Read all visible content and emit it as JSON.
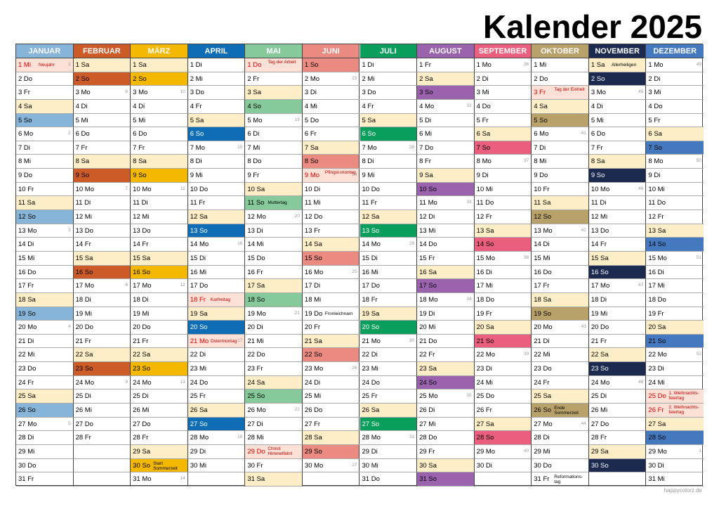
{
  "title": "Kalender 2025",
  "credit": "happycolorz.de",
  "months": [
    {
      "name": "JANUAR",
      "color": "#86b5d9",
      "days": [
        {
          "d": "1 Mi",
          "hol": "Neujahr",
          "wk": "1"
        },
        {
          "d": "2 Do"
        },
        {
          "d": "3 Fr"
        },
        {
          "d": "4 Sa"
        },
        {
          "d": "5 So"
        },
        {
          "d": "6 Mo",
          "wk": "2"
        },
        {
          "d": "7 Di"
        },
        {
          "d": "8 Mi"
        },
        {
          "d": "9 Do"
        },
        {
          "d": "10 Fr"
        },
        {
          "d": "11 Sa"
        },
        {
          "d": "12 So"
        },
        {
          "d": "13 Mo",
          "wk": "3"
        },
        {
          "d": "14 Di"
        },
        {
          "d": "15 Mi"
        },
        {
          "d": "16 Do"
        },
        {
          "d": "17 Fr"
        },
        {
          "d": "18 Sa"
        },
        {
          "d": "19 So"
        },
        {
          "d": "20 Mo",
          "wk": "4"
        },
        {
          "d": "21 Di"
        },
        {
          "d": "22 Mi"
        },
        {
          "d": "23 Do"
        },
        {
          "d": "24 Fr"
        },
        {
          "d": "25 Sa"
        },
        {
          "d": "26 So"
        },
        {
          "d": "27 Mo",
          "wk": "5"
        },
        {
          "d": "28 Di"
        },
        {
          "d": "29 Mi"
        },
        {
          "d": "30 Do"
        },
        {
          "d": "31 Fr"
        }
      ]
    },
    {
      "name": "FEBRUAR",
      "color": "#cc5b28",
      "days": [
        {
          "d": "1 Sa"
        },
        {
          "d": "2 So"
        },
        {
          "d": "3 Mo",
          "wk": "6"
        },
        {
          "d": "4 Di"
        },
        {
          "d": "5 Mi"
        },
        {
          "d": "6 Do"
        },
        {
          "d": "7 Fr"
        },
        {
          "d": "8 Sa"
        },
        {
          "d": "9 So"
        },
        {
          "d": "10 Mo",
          "wk": "7"
        },
        {
          "d": "11 Di"
        },
        {
          "d": "12 Mi"
        },
        {
          "d": "13 Do"
        },
        {
          "d": "14 Fr"
        },
        {
          "d": "15 Sa"
        },
        {
          "d": "16 So"
        },
        {
          "d": "17 Mo",
          "wk": "8"
        },
        {
          "d": "18 Di"
        },
        {
          "d": "19 Mi"
        },
        {
          "d": "20 Do"
        },
        {
          "d": "21 Fr"
        },
        {
          "d": "22 Sa"
        },
        {
          "d": "23 So"
        },
        {
          "d": "24 Mo",
          "wk": "9"
        },
        {
          "d": "25 Di"
        },
        {
          "d": "26 Mi"
        },
        {
          "d": "27 Do"
        },
        {
          "d": "28 Fr"
        }
      ]
    },
    {
      "name": "MÄRZ",
      "color": "#f5b800",
      "days": [
        {
          "d": "1 Sa"
        },
        {
          "d": "2 So"
        },
        {
          "d": "3 Mo",
          "wk": "10"
        },
        {
          "d": "4 Di"
        },
        {
          "d": "5 Mi"
        },
        {
          "d": "6 Do"
        },
        {
          "d": "7 Fr"
        },
        {
          "d": "8 Sa"
        },
        {
          "d": "9 So"
        },
        {
          "d": "10 Mo",
          "wk": "11"
        },
        {
          "d": "11 Di"
        },
        {
          "d": "12 Mi"
        },
        {
          "d": "13 Do"
        },
        {
          "d": "14 Fr"
        },
        {
          "d": "15 Sa"
        },
        {
          "d": "16 So"
        },
        {
          "d": "17 Mo",
          "wk": "12"
        },
        {
          "d": "18 Di"
        },
        {
          "d": "19 Mi"
        },
        {
          "d": "20 Do"
        },
        {
          "d": "21 Fr"
        },
        {
          "d": "22 Sa"
        },
        {
          "d": "23 So"
        },
        {
          "d": "24 Mo",
          "wk": "13"
        },
        {
          "d": "25 Di"
        },
        {
          "d": "26 Mi"
        },
        {
          "d": "27 Do"
        },
        {
          "d": "28 Fr"
        },
        {
          "d": "29 Sa"
        },
        {
          "d": "30 So",
          "info": "Start Sommerzeit"
        },
        {
          "d": "31 Mo",
          "wk": "14"
        }
      ]
    },
    {
      "name": "APRIL",
      "color": "#0e6db5",
      "days": [
        {
          "d": "1 Di"
        },
        {
          "d": "2 Mi"
        },
        {
          "d": "3 Do"
        },
        {
          "d": "4 Fr"
        },
        {
          "d": "5 Sa"
        },
        {
          "d": "6 So"
        },
        {
          "d": "7 Mo",
          "wk": "15"
        },
        {
          "d": "8 Di"
        },
        {
          "d": "9 Mi"
        },
        {
          "d": "10 Do"
        },
        {
          "d": "11 Fr"
        },
        {
          "d": "12 Sa"
        },
        {
          "d": "13 So"
        },
        {
          "d": "14 Mo",
          "wk": "16"
        },
        {
          "d": "15 Di"
        },
        {
          "d": "16 Mi"
        },
        {
          "d": "17 Do"
        },
        {
          "d": "18 Fr",
          "hol": "Karfreitag"
        },
        {
          "d": "19 Sa"
        },
        {
          "d": "20 So"
        },
        {
          "d": "21 Mo",
          "hol": "Ostermontag",
          "wk": "17"
        },
        {
          "d": "22 Di"
        },
        {
          "d": "23 Mi"
        },
        {
          "d": "24 Do"
        },
        {
          "d": "25 Fr"
        },
        {
          "d": "26 Sa"
        },
        {
          "d": "27 So"
        },
        {
          "d": "28 Mo",
          "wk": "18"
        },
        {
          "d": "29 Di"
        },
        {
          "d": "30 Mi"
        }
      ]
    },
    {
      "name": "MAI",
      "color": "#86c99b",
      "days": [
        {
          "d": "1 Do",
          "hol": "Tag der Arbeit"
        },
        {
          "d": "2 Fr"
        },
        {
          "d": "3 Sa"
        },
        {
          "d": "4 So"
        },
        {
          "d": "5 Mo",
          "wk": "19"
        },
        {
          "d": "6 Di"
        },
        {
          "d": "7 Mi"
        },
        {
          "d": "8 Do"
        },
        {
          "d": "9 Fr"
        },
        {
          "d": "10 Sa"
        },
        {
          "d": "11 So",
          "info": "Muttertag"
        },
        {
          "d": "12 Mo",
          "wk": "20"
        },
        {
          "d": "13 Di"
        },
        {
          "d": "14 Mi"
        },
        {
          "d": "15 Do"
        },
        {
          "d": "16 Fr"
        },
        {
          "d": "17 Sa"
        },
        {
          "d": "18 So"
        },
        {
          "d": "19 Mo",
          "wk": "21"
        },
        {
          "d": "20 Di"
        },
        {
          "d": "21 Mi"
        },
        {
          "d": "22 Do"
        },
        {
          "d": "23 Fr"
        },
        {
          "d": "24 Sa"
        },
        {
          "d": "25 So"
        },
        {
          "d": "26 Mo",
          "wk": "22"
        },
        {
          "d": "27 Di"
        },
        {
          "d": "28 Mi"
        },
        {
          "d": "29 Do",
          "hol": "Christi Himmelfahrt"
        },
        {
          "d": "30 Fr"
        },
        {
          "d": "31 Sa"
        }
      ]
    },
    {
      "name": "JUNI",
      "color": "#ea8a80",
      "days": [
        {
          "d": "1 So"
        },
        {
          "d": "2 Mo",
          "wk": "23"
        },
        {
          "d": "3 Di"
        },
        {
          "d": "4 Mi"
        },
        {
          "d": "5 Do"
        },
        {
          "d": "6 Fr"
        },
        {
          "d": "7 Sa"
        },
        {
          "d": "8 So"
        },
        {
          "d": "9 Mo",
          "hol": "Pfingst-montag",
          "wk": "24"
        },
        {
          "d": "10 Di"
        },
        {
          "d": "11 Mi"
        },
        {
          "d": "12 Do"
        },
        {
          "d": "13 Fr"
        },
        {
          "d": "14 Sa"
        },
        {
          "d": "15 So"
        },
        {
          "d": "16 Mo",
          "wk": "25"
        },
        {
          "d": "17 Di"
        },
        {
          "d": "18 Mi"
        },
        {
          "d": "19 Do",
          "info": "Fronleichnam"
        },
        {
          "d": "20 Fr"
        },
        {
          "d": "21 Sa"
        },
        {
          "d": "22 So"
        },
        {
          "d": "23 Mo",
          "wk": "26"
        },
        {
          "d": "24 Di"
        },
        {
          "d": "25 Mi"
        },
        {
          "d": "26 Do"
        },
        {
          "d": "27 Fr"
        },
        {
          "d": "28 Sa"
        },
        {
          "d": "29 So"
        },
        {
          "d": "30 Mo",
          "wk": "27"
        }
      ]
    },
    {
      "name": "JULI",
      "color": "#0a9e5c",
      "days": [
        {
          "d": "1 Di"
        },
        {
          "d": "2 Mi"
        },
        {
          "d": "3 Do"
        },
        {
          "d": "4 Fr"
        },
        {
          "d": "5 Sa"
        },
        {
          "d": "6 So"
        },
        {
          "d": "7 Mo",
          "wk": "28"
        },
        {
          "d": "8 Di"
        },
        {
          "d": "9 Mi"
        },
        {
          "d": "10 Do"
        },
        {
          "d": "11 Fr"
        },
        {
          "d": "12 Sa"
        },
        {
          "d": "13 So"
        },
        {
          "d": "14 Mo",
          "wk": "29"
        },
        {
          "d": "15 Di"
        },
        {
          "d": "16 Mi"
        },
        {
          "d": "17 Do"
        },
        {
          "d": "18 Fr"
        },
        {
          "d": "19 Sa"
        },
        {
          "d": "20 So"
        },
        {
          "d": "21 Mo",
          "wk": "30"
        },
        {
          "d": "22 Di"
        },
        {
          "d": "23 Mi"
        },
        {
          "d": "24 Do"
        },
        {
          "d": "25 Fr"
        },
        {
          "d": "26 Sa"
        },
        {
          "d": "27 So"
        },
        {
          "d": "28 Mo",
          "wk": "31"
        },
        {
          "d": "29 Di"
        },
        {
          "d": "30 Mi"
        },
        {
          "d": "31 Do"
        }
      ]
    },
    {
      "name": "AUGUST",
      "color": "#9b62ae",
      "days": [
        {
          "d": "1 Fr"
        },
        {
          "d": "2 Sa"
        },
        {
          "d": "3 So"
        },
        {
          "d": "4 Mo",
          "wk": "32"
        },
        {
          "d": "5 Di"
        },
        {
          "d": "6 Mi"
        },
        {
          "d": "7 Do"
        },
        {
          "d": "8 Fr"
        },
        {
          "d": "9 Sa"
        },
        {
          "d": "10 So"
        },
        {
          "d": "11 Mo",
          "wk": "33"
        },
        {
          "d": "12 Di"
        },
        {
          "d": "13 Mi"
        },
        {
          "d": "14 Do"
        },
        {
          "d": "15 Fr"
        },
        {
          "d": "16 Sa"
        },
        {
          "d": "17 So"
        },
        {
          "d": "18 Mo",
          "wk": "34"
        },
        {
          "d": "19 Di"
        },
        {
          "d": "20 Mi"
        },
        {
          "d": "21 Do"
        },
        {
          "d": "22 Fr"
        },
        {
          "d": "23 Sa"
        },
        {
          "d": "24 So"
        },
        {
          "d": "25 Mo",
          "wk": "35"
        },
        {
          "d": "26 Di"
        },
        {
          "d": "27 Mi"
        },
        {
          "d": "28 Do"
        },
        {
          "d": "29 Fr"
        },
        {
          "d": "30 Sa"
        },
        {
          "d": "31 So"
        }
      ]
    },
    {
      "name": "SEPTEMBER",
      "color": "#ea5f7d",
      "days": [
        {
          "d": "1 Mo",
          "wk": "36"
        },
        {
          "d": "2 Di"
        },
        {
          "d": "3 Mi"
        },
        {
          "d": "4 Do"
        },
        {
          "d": "5 Fr"
        },
        {
          "d": "6 Sa"
        },
        {
          "d": "7 So"
        },
        {
          "d": "8 Mo",
          "wk": "37"
        },
        {
          "d": "9 Di"
        },
        {
          "d": "10 Mi"
        },
        {
          "d": "11 Do"
        },
        {
          "d": "12 Fr"
        },
        {
          "d": "13 Sa"
        },
        {
          "d": "14 So"
        },
        {
          "d": "15 Mo",
          "wk": "38"
        },
        {
          "d": "16 Di"
        },
        {
          "d": "17 Mi"
        },
        {
          "d": "18 Do"
        },
        {
          "d": "19 Fr"
        },
        {
          "d": "20 Sa"
        },
        {
          "d": "21 So"
        },
        {
          "d": "22 Mo",
          "wk": "39"
        },
        {
          "d": "23 Di"
        },
        {
          "d": "24 Mi"
        },
        {
          "d": "25 Do"
        },
        {
          "d": "26 Fr"
        },
        {
          "d": "27 Sa"
        },
        {
          "d": "28 So"
        },
        {
          "d": "29 Mo",
          "wk": "40"
        },
        {
          "d": "30 Di"
        }
      ]
    },
    {
      "name": "OKTOBER",
      "color": "#b9a26a",
      "days": [
        {
          "d": "1 Mi"
        },
        {
          "d": "2 Do"
        },
        {
          "d": "3 Fr",
          "hol": "Tag der Einheit"
        },
        {
          "d": "4 Sa"
        },
        {
          "d": "5 So"
        },
        {
          "d": "6 Mo",
          "wk": "41"
        },
        {
          "d": "7 Di"
        },
        {
          "d": "8 Mi"
        },
        {
          "d": "9 Do"
        },
        {
          "d": "10 Fr"
        },
        {
          "d": "11 Sa"
        },
        {
          "d": "12 So"
        },
        {
          "d": "13 Mo",
          "wk": "42"
        },
        {
          "d": "14 Di"
        },
        {
          "d": "15 Mi"
        },
        {
          "d": "16 Do"
        },
        {
          "d": "17 Fr"
        },
        {
          "d": "18 Sa"
        },
        {
          "d": "19 So"
        },
        {
          "d": "20 Mo",
          "wk": "43"
        },
        {
          "d": "21 Di"
        },
        {
          "d": "22 Mi"
        },
        {
          "d": "23 Do"
        },
        {
          "d": "24 Fr"
        },
        {
          "d": "25 Sa"
        },
        {
          "d": "26 So",
          "info": "Ende Sommerzeit"
        },
        {
          "d": "27 Mo",
          "wk": "44"
        },
        {
          "d": "28 Di"
        },
        {
          "d": "29 Mi"
        },
        {
          "d": "30 Do"
        },
        {
          "d": "31 Fr",
          "info": "Reformations-tag"
        }
      ]
    },
    {
      "name": "NOVEMBER",
      "color": "#1b2a4e",
      "days": [
        {
          "d": "1 Sa",
          "info": "Allerheiligen"
        },
        {
          "d": "2 So"
        },
        {
          "d": "3 Mo",
          "wk": "45"
        },
        {
          "d": "4 Di"
        },
        {
          "d": "5 Mi"
        },
        {
          "d": "6 Do"
        },
        {
          "d": "7 Fr"
        },
        {
          "d": "8 Sa"
        },
        {
          "d": "9 So"
        },
        {
          "d": "10 Mo",
          "wk": "46"
        },
        {
          "d": "11 Di"
        },
        {
          "d": "12 Mi"
        },
        {
          "d": "13 Do"
        },
        {
          "d": "14 Fr"
        },
        {
          "d": "15 Sa"
        },
        {
          "d": "16 So"
        },
        {
          "d": "17 Mo",
          "wk": "47"
        },
        {
          "d": "18 Di"
        },
        {
          "d": "19 Mi"
        },
        {
          "d": "20 Do"
        },
        {
          "d": "21 Fr"
        },
        {
          "d": "22 Sa"
        },
        {
          "d": "23 So"
        },
        {
          "d": "24 Mo",
          "wk": "48"
        },
        {
          "d": "25 Di"
        },
        {
          "d": "26 Mi"
        },
        {
          "d": "27 Do"
        },
        {
          "d": "28 Fr"
        },
        {
          "d": "29 Sa"
        },
        {
          "d": "30 So"
        }
      ]
    },
    {
      "name": "DEZEMBER",
      "color": "#4478bf",
      "days": [
        {
          "d": "1 Mo",
          "wk": "49"
        },
        {
          "d": "2 Di"
        },
        {
          "d": "3 Mi"
        },
        {
          "d": "4 Do"
        },
        {
          "d": "5 Fr"
        },
        {
          "d": "6 Sa"
        },
        {
          "d": "7 So"
        },
        {
          "d": "8 Mo",
          "wk": "50"
        },
        {
          "d": "9 Di"
        },
        {
          "d": "10 Mi"
        },
        {
          "d": "11 Do"
        },
        {
          "d": "12 Fr"
        },
        {
          "d": "13 Sa"
        },
        {
          "d": "14 So"
        },
        {
          "d": "15 Mo",
          "wk": "51"
        },
        {
          "d": "16 Di"
        },
        {
          "d": "17 Mi"
        },
        {
          "d": "18 Do"
        },
        {
          "d": "19 Fr"
        },
        {
          "d": "20 Sa"
        },
        {
          "d": "21 So"
        },
        {
          "d": "22 Mo",
          "wk": "52"
        },
        {
          "d": "23 Di"
        },
        {
          "d": "24 Mi"
        },
        {
          "d": "25 Do",
          "hol": "1. Weihnachts-feiertag"
        },
        {
          "d": "26 Fr",
          "hol": "2. Weihnachts-feiertag"
        },
        {
          "d": "27 Sa"
        },
        {
          "d": "28 So"
        },
        {
          "d": "29 Mo",
          "wk": "1"
        },
        {
          "d": "30 Di"
        },
        {
          "d": "31 Mi"
        }
      ]
    }
  ],
  "colors": {
    "saturday_bg": "#fdeec8",
    "holiday_bg": "#fde0d6",
    "holiday_text": "#e00000",
    "grid": "#aaaaaa"
  }
}
